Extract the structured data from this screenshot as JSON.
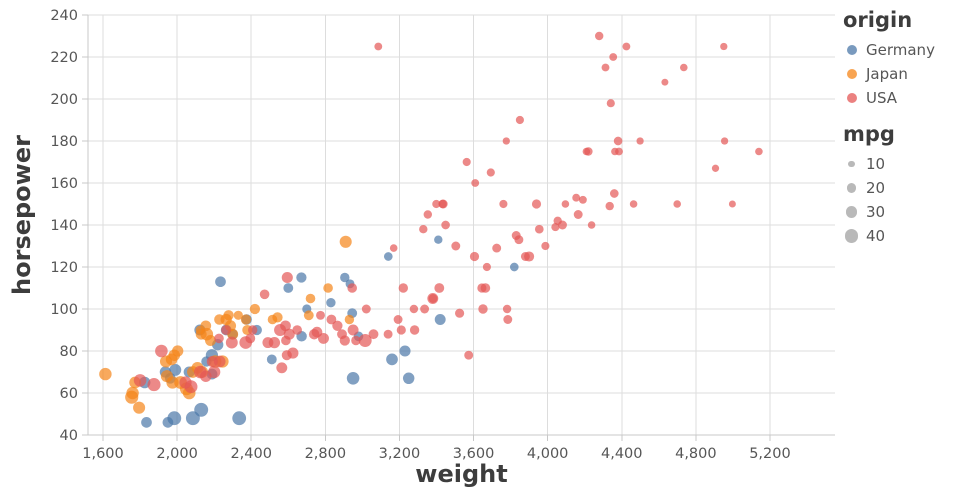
{
  "chart_data": {
    "type": "scatter",
    "title": "",
    "xlabel": "weight",
    "ylabel": "horsepower",
    "xlim": [
      1519,
      5551
    ],
    "ylim": [
      40,
      240
    ],
    "grid": true,
    "x_ticks": [
      1600,
      2000,
      2400,
      2800,
      3200,
      3600,
      4000,
      4400,
      4800,
      5200
    ],
    "x_tick_labels": [
      "1,600",
      "2,000",
      "2,400",
      "2,800",
      "3,200",
      "3,600",
      "4,000",
      "4,400",
      "4,800",
      "5,200"
    ],
    "y_ticks": [
      40,
      60,
      80,
      100,
      120,
      140,
      160,
      180,
      200,
      220,
      240
    ],
    "y_tick_labels": [
      "40",
      "60",
      "80",
      "100",
      "120",
      "140",
      "160",
      "180",
      "200",
      "220",
      "240"
    ],
    "point_opacity": 0.7,
    "size_field": "mpg",
    "legend": {
      "color": {
        "title": "origin",
        "items": [
          {
            "label": "Germany",
            "color": "#4c78a8"
          },
          {
            "label": "Japan",
            "color": "#f58518"
          },
          {
            "label": "USA",
            "color": "#e45756"
          }
        ]
      },
      "size": {
        "title": "mpg",
        "items": [
          "10",
          "20",
          "30",
          "40"
        ],
        "values": [
          10,
          20,
          30,
          40
        ],
        "symbol_color": "#808080"
      }
    },
    "colors": {
      "grid": "#dddddd",
      "domain": "#c8c8c8",
      "tick_label": "#565656",
      "title": "#3d3d3d"
    },
    "columns": [
      "weight",
      "horsepower",
      "mpg",
      "origin"
    ],
    "points": [
      [
        1835,
        46,
        26,
        "Germany"
      ],
      [
        1950,
        46,
        26,
        "Germany"
      ],
      [
        2672,
        87,
        25,
        "Germany"
      ],
      [
        2430,
        90,
        24,
        "Germany"
      ],
      [
        2375,
        95,
        25,
        "Germany"
      ],
      [
        2234,
        113,
        26,
        "Germany"
      ],
      [
        2123,
        90,
        28,
        "Germany"
      ],
      [
        2511,
        76,
        22,
        "Germany"
      ],
      [
        2979,
        87,
        21,
        "Germany"
      ],
      [
        2189,
        69,
        26,
        "Germany"
      ],
      [
        2933,
        112,
        18,
        "Germany"
      ],
      [
        2945,
        98,
        22,
        "Germany"
      ],
      [
        2671,
        115,
        24,
        "Germany"
      ],
      [
        3140,
        125,
        17,
        "Germany"
      ],
      [
        2600,
        110,
        22,
        "Germany"
      ],
      [
        1985,
        48,
        43,
        "Germany"
      ],
      [
        2335,
        48,
        43,
        "Germany"
      ],
      [
        2085,
        48,
        44,
        "Germany"
      ],
      [
        2130,
        52,
        44,
        "Germany"
      ],
      [
        2830,
        103,
        20,
        "Germany"
      ],
      [
        3410,
        133,
        16,
        "Germany"
      ],
      [
        1990,
        71,
        32,
        "Germany"
      ],
      [
        3820,
        120,
        17,
        "Germany"
      ],
      [
        3230,
        80,
        28,
        "Germany"
      ],
      [
        3250,
        67,
        30,
        "Germany"
      ],
      [
        3160,
        76,
        31,
        "Germany"
      ],
      [
        2188,
        78,
        34,
        "Germany"
      ],
      [
        2950,
        67,
        36,
        "Germany"
      ],
      [
        2158,
        75,
        24,
        "Germany"
      ],
      [
        2265,
        90,
        26,
        "Germany"
      ],
      [
        1937,
        70,
        29,
        "Germany"
      ],
      [
        1963,
        67,
        26,
        "Germany"
      ],
      [
        2219,
        83,
        29,
        "Germany"
      ],
      [
        2300,
        88,
        25,
        "Germany"
      ],
      [
        2065,
        70,
        28,
        "Germany"
      ],
      [
        1825,
        65,
        30,
        "Germany"
      ],
      [
        2700,
        100,
        19,
        "Germany"
      ],
      [
        2905,
        115,
        20,
        "Germany"
      ],
      [
        3420,
        95,
        27,
        "Germany"
      ],
      [
        1613,
        69,
        35,
        "Japan"
      ],
      [
        1773,
        65,
        31,
        "Japan"
      ],
      [
        1795,
        53,
        33,
        "Japan"
      ],
      [
        1755,
        58,
        39,
        "Japan"
      ],
      [
        1760,
        60,
        35,
        "Japan"
      ],
      [
        1975,
        65,
        34,
        "Japan"
      ],
      [
        2050,
        62,
        38,
        "Japan"
      ],
      [
        2019,
        65,
        37,
        "Japan"
      ],
      [
        2160,
        88,
        36,
        "Japan"
      ],
      [
        2205,
        75,
        36,
        "Japan"
      ],
      [
        2130,
        88,
        27,
        "Japan"
      ],
      [
        2372,
        95,
        24,
        "Japan"
      ],
      [
        2288,
        92,
        28,
        "Japan"
      ],
      [
        2330,
        97,
        19,
        "Japan"
      ],
      [
        2124,
        90,
        18,
        "Japan"
      ],
      [
        2515,
        95,
        21,
        "Japan"
      ],
      [
        2910,
        132,
        33,
        "Japan"
      ],
      [
        2420,
        100,
        24,
        "Japan"
      ],
      [
        2815,
        110,
        21,
        "Japan"
      ],
      [
        2930,
        95,
        20,
        "Japan"
      ],
      [
        2228,
        95,
        25,
        "Japan"
      ],
      [
        2278,
        97,
        24,
        "Japan"
      ],
      [
        2265,
        95,
        29,
        "Japan"
      ],
      [
        2085,
        70,
        31,
        "Japan"
      ],
      [
        1945,
        68,
        33,
        "Japan"
      ],
      [
        2300,
        88,
        27,
        "Japan"
      ],
      [
        1985,
        78,
        30,
        "Japan"
      ],
      [
        2135,
        70,
        32,
        "Japan"
      ],
      [
        2245,
        75,
        34,
        "Japan"
      ],
      [
        1970,
        76,
        31,
        "Japan"
      ],
      [
        2155,
        92,
        26,
        "Japan"
      ],
      [
        2379,
        90,
        23,
        "Japan"
      ],
      [
        2711,
        97,
        22,
        "Japan"
      ],
      [
        2542,
        96,
        24,
        "Japan"
      ],
      [
        1940,
        75,
        33,
        "Japan"
      ],
      [
        2003,
        80,
        29,
        "Japan"
      ],
      [
        2180,
        85,
        27,
        "Japan"
      ],
      [
        2065,
        60,
        36,
        "Japan"
      ],
      [
        2110,
        72,
        31,
        "Japan"
      ],
      [
        2720,
        105,
        21,
        "Japan"
      ],
      [
        3504,
        130,
        18,
        "USA"
      ],
      [
        3693,
        165,
        15,
        "USA"
      ],
      [
        3436,
        150,
        18,
        "USA"
      ],
      [
        3433,
        150,
        16,
        "USA"
      ],
      [
        3449,
        140,
        17,
        "USA"
      ],
      [
        4341,
        198,
        15,
        "USA"
      ],
      [
        4354,
        220,
        14,
        "USA"
      ],
      [
        4312,
        215,
        14,
        "USA"
      ],
      [
        4425,
        225,
        14,
        "USA"
      ],
      [
        3850,
        190,
        15,
        "USA"
      ],
      [
        3563,
        170,
        15,
        "USA"
      ],
      [
        3609,
        160,
        14,
        "USA"
      ],
      [
        3761,
        150,
        15,
        "USA"
      ],
      [
        3086,
        225,
        14,
        "USA"
      ],
      [
        4278,
        230,
        16,
        "USA"
      ],
      [
        4951,
        225,
        12,
        "USA"
      ],
      [
        4735,
        215,
        13,
        "USA"
      ],
      [
        4633,
        208,
        11,
        "USA"
      ],
      [
        4955,
        180,
        12,
        "USA"
      ],
      [
        5140,
        175,
        13,
        "USA"
      ],
      [
        4699,
        150,
        13,
        "USA"
      ],
      [
        4906,
        167,
        12,
        "USA"
      ],
      [
        4997,
        150,
        11,
        "USA"
      ],
      [
        4499,
        180,
        12,
        "USA"
      ],
      [
        4385,
        175,
        14,
        "USA"
      ],
      [
        4190,
        152,
        14,
        "USA"
      ],
      [
        4464,
        150,
        13,
        "USA"
      ],
      [
        4209,
        175,
        13,
        "USA"
      ],
      [
        4154,
        153,
        14,
        "USA"
      ],
      [
        4096,
        150,
        13,
        "USA"
      ],
      [
        3988,
        130,
        15,
        "USA"
      ],
      [
        4042,
        139,
        15,
        "USA"
      ],
      [
        4363,
        175,
        13,
        "USA"
      ],
      [
        4237,
        140,
        13,
        "USA"
      ],
      [
        3777,
        180,
        12,
        "USA"
      ],
      [
        3329,
        138,
        16,
        "USA"
      ],
      [
        3381,
        105,
        18,
        "USA"
      ],
      [
        3282,
        90,
        20,
        "USA"
      ],
      [
        3139,
        88,
        18,
        "USA"
      ],
      [
        3664,
        110,
        21,
        "USA"
      ],
      [
        2264,
        90,
        22,
        "USA"
      ],
      [
        2408,
        90,
        20,
        "USA"
      ],
      [
        2226,
        86,
        21,
        "USA"
      ],
      [
        2587,
        85,
        21,
        "USA"
      ],
      [
        2833,
        95,
        22,
        "USA"
      ],
      [
        2774,
        97,
        18,
        "USA"
      ],
      [
        2648,
        90,
        21,
        "USA"
      ],
      [
        3021,
        100,
        18,
        "USA"
      ],
      [
        2965,
        85,
        20,
        "USA"
      ],
      [
        2890,
        88,
        22,
        "USA"
      ],
      [
        2155,
        68,
        30,
        "USA"
      ],
      [
        1875,
        64,
        39,
        "USA"
      ],
      [
        2200,
        70,
        34,
        "USA"
      ],
      [
        2075,
        63,
        38,
        "USA"
      ],
      [
        2230,
        75,
        31,
        "USA"
      ],
      [
        1800,
        66,
        36,
        "USA"
      ],
      [
        2190,
        75,
        28,
        "USA"
      ],
      [
        1915,
        80,
        36,
        "USA"
      ],
      [
        3353,
        145,
        16,
        "USA"
      ],
      [
        3399,
        150,
        15,
        "USA"
      ],
      [
        3336,
        100,
        18,
        "USA"
      ],
      [
        3210,
        90,
        19,
        "USA"
      ],
      [
        2595,
        115,
        28,
        "USA"
      ],
      [
        2556,
        90,
        33,
        "USA"
      ],
      [
        3725,
        129,
        18,
        "USA"
      ],
      [
        3955,
        138,
        17,
        "USA"
      ],
      [
        3830,
        135,
        18,
        "USA"
      ],
      [
        4360,
        155,
        17,
        "USA"
      ],
      [
        4054,
        142,
        16,
        "USA"
      ],
      [
        3605,
        125,
        19,
        "USA"
      ],
      [
        3940,
        150,
        19,
        "USA"
      ],
      [
        3169,
        129,
        13,
        "USA"
      ],
      [
        3221,
        110,
        20,
        "USA"
      ],
      [
        2755,
        89,
        26,
        "USA"
      ],
      [
        2950,
        90,
        27,
        "USA"
      ],
      [
        3574,
        78,
        18,
        "USA"
      ],
      [
        3645,
        110,
        19,
        "USA"
      ],
      [
        3193,
        95,
        18,
        "USA"
      ],
      [
        3651,
        100,
        20,
        "USA"
      ],
      [
        3525,
        98,
        19,
        "USA"
      ],
      [
        2740,
        88,
        25,
        "USA"
      ],
      [
        3781,
        100,
        16,
        "USA"
      ],
      [
        3785,
        95,
        18,
        "USA"
      ],
      [
        2945,
        110,
        21,
        "USA"
      ],
      [
        2905,
        85,
        24,
        "USA"
      ],
      [
        4080,
        140,
        18,
        "USA"
      ],
      [
        3880,
        125,
        18,
        "USA"
      ],
      [
        4335,
        149,
        16,
        "USA"
      ],
      [
        4220,
        175,
        16,
        "USA"
      ],
      [
        4380,
        180,
        17,
        "USA"
      ],
      [
        3845,
        133,
        18,
        "USA"
      ],
      [
        3900,
        125,
        23,
        "USA"
      ],
      [
        3380,
        105,
        27,
        "USA"
      ],
      [
        3415,
        110,
        22,
        "USA"
      ],
      [
        4165,
        145,
        18,
        "USA"
      ],
      [
        3672,
        120,
        15,
        "USA"
      ],
      [
        2395,
        86,
        22,
        "USA"
      ],
      [
        2472,
        107,
        21,
        "USA"
      ],
      [
        3278,
        100,
        16,
        "USA"
      ],
      [
        2565,
        72,
        27,
        "USA"
      ],
      [
        2592,
        78,
        23,
        "USA"
      ],
      [
        2045,
        65,
        34,
        "USA"
      ],
      [
        2125,
        70,
        36,
        "USA"
      ],
      [
        2605,
        88,
        28,
        "USA"
      ],
      [
        2865,
        92,
        24,
        "USA"
      ],
      [
        3015,
        85,
        38,
        "USA"
      ],
      [
        2585,
        92,
        26,
        "USA"
      ],
      [
        2525,
        84,
        29,
        "USA"
      ],
      [
        3060,
        88,
        22,
        "USA"
      ],
      [
        2490,
        84,
        27,
        "USA"
      ],
      [
        2370,
        84,
        36,
        "USA"
      ],
      [
        2790,
        86,
        27,
        "USA"
      ],
      [
        2295,
        84,
        32,
        "USA"
      ],
      [
        2625,
        79,
        28,
        "USA"
      ]
    ]
  }
}
